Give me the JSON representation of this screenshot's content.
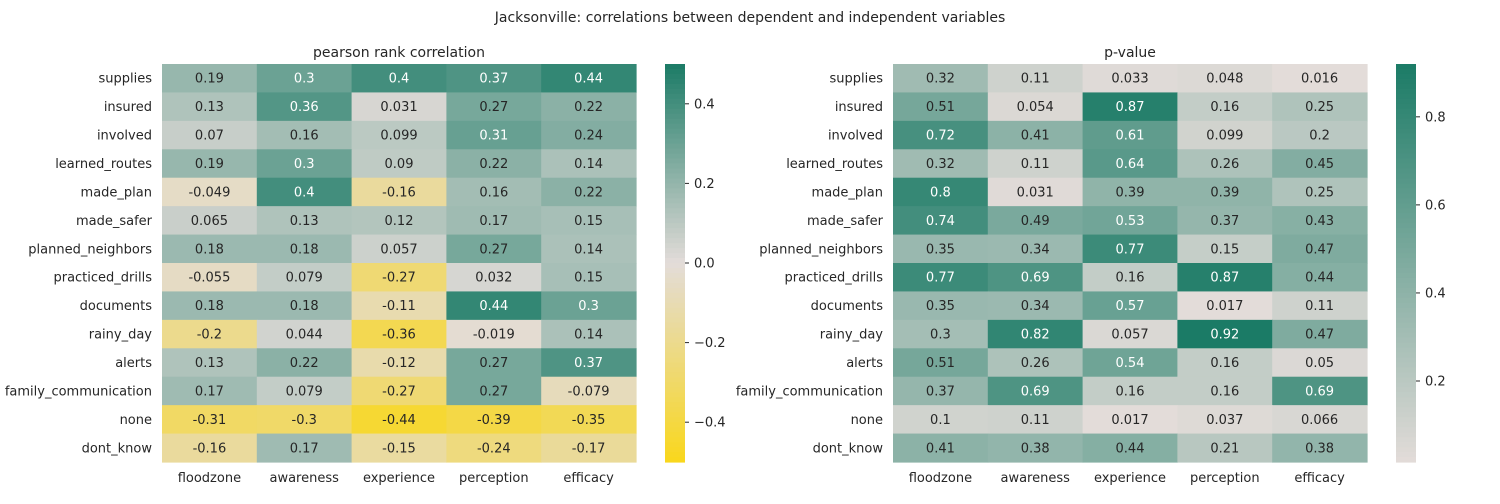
{
  "title": "Jacksonville: correlations between dependent and independent variables",
  "chart_data": [
    {
      "type": "heatmap",
      "title": "pearson rank correlation",
      "rows": [
        "supplies",
        "insured",
        "involved",
        "learned_routes",
        "made_plan",
        "made_safer",
        "planned_neighbors",
        "practiced_drills",
        "documents",
        "rainy_day",
        "alerts",
        "family_communication",
        "none",
        "dont_know"
      ],
      "columns": [
        "floodzone",
        "awareness",
        "experience",
        "perception",
        "efficacy"
      ],
      "values": [
        [
          0.19,
          0.3,
          0.4,
          0.37,
          0.44
        ],
        [
          0.13,
          0.36,
          0.031,
          0.27,
          0.22
        ],
        [
          0.07,
          0.16,
          0.099,
          0.31,
          0.24
        ],
        [
          0.19,
          0.3,
          0.09,
          0.22,
          0.14
        ],
        [
          -0.049,
          0.4,
          -0.16,
          0.16,
          0.22
        ],
        [
          0.065,
          0.13,
          0.12,
          0.17,
          0.15
        ],
        [
          0.18,
          0.18,
          0.057,
          0.27,
          0.14
        ],
        [
          -0.055,
          0.079,
          -0.27,
          0.032,
          0.15
        ],
        [
          0.18,
          0.18,
          -0.11,
          0.44,
          0.3
        ],
        [
          -0.2,
          0.044,
          -0.36,
          -0.019,
          0.14
        ],
        [
          0.13,
          0.22,
          -0.12,
          0.27,
          0.37
        ],
        [
          0.17,
          0.079,
          -0.27,
          0.27,
          -0.079
        ],
        [
          -0.31,
          -0.3,
          -0.44,
          -0.39,
          -0.35
        ],
        [
          -0.16,
          0.17,
          -0.15,
          -0.24,
          -0.17
        ]
      ],
      "labels": [
        [
          "0.19",
          "0.3",
          "0.4",
          "0.37",
          "0.44"
        ],
        [
          "0.13",
          "0.36",
          "0.031",
          "0.27",
          "0.22"
        ],
        [
          "0.07",
          "0.16",
          "0.099",
          "0.31",
          "0.24"
        ],
        [
          "0.19",
          "0.3",
          "0.09",
          "0.22",
          "0.14"
        ],
        [
          "-0.049",
          "0.4",
          "-0.16",
          "0.16",
          "0.22"
        ],
        [
          "0.065",
          "0.13",
          "0.12",
          "0.17",
          "0.15"
        ],
        [
          "0.18",
          "0.18",
          "0.057",
          "0.27",
          "0.14"
        ],
        [
          "-0.055",
          "0.079",
          "-0.27",
          "0.032",
          "0.15"
        ],
        [
          "0.18",
          "0.18",
          "-0.11",
          "0.44",
          "0.3"
        ],
        [
          "-0.2",
          "0.044",
          "-0.36",
          "-0.019",
          "0.14"
        ],
        [
          "0.13",
          "0.22",
          "-0.12",
          "0.27",
          "0.37"
        ],
        [
          "0.17",
          "0.079",
          "-0.27",
          "0.27",
          "-0.079"
        ],
        [
          "-0.31",
          "-0.3",
          "-0.44",
          "-0.39",
          "-0.35"
        ],
        [
          "-0.16",
          "0.17",
          "-0.15",
          "-0.24",
          "-0.17"
        ]
      ],
      "vmin": -0.5,
      "vmax": 0.5,
      "colorbar_ticks": [
        0.4,
        0.2,
        0.0,
        -0.2,
        -0.4
      ],
      "colorbar_tick_labels": [
        "0.4",
        "0.2",
        "0.0",
        "−0.2",
        "−0.4"
      ],
      "colormap": {
        "low": "#f9d71c",
        "mid": "#e3dcd9",
        "high": "#1b7b66"
      }
    },
    {
      "type": "heatmap",
      "title": "p-value",
      "rows": [
        "supplies",
        "insured",
        "involved",
        "learned_routes",
        "made_plan",
        "made_safer",
        "planned_neighbors",
        "practiced_drills",
        "documents",
        "rainy_day",
        "alerts",
        "family_communication",
        "none",
        "dont_know"
      ],
      "columns": [
        "floodzone",
        "awareness",
        "experience",
        "perception",
        "efficacy"
      ],
      "values": [
        [
          0.32,
          0.11,
          0.033,
          0.048,
          0.016
        ],
        [
          0.51,
          0.054,
          0.87,
          0.16,
          0.25
        ],
        [
          0.72,
          0.41,
          0.61,
          0.099,
          0.2
        ],
        [
          0.32,
          0.11,
          0.64,
          0.26,
          0.45
        ],
        [
          0.8,
          0.031,
          0.39,
          0.39,
          0.25
        ],
        [
          0.74,
          0.49,
          0.53,
          0.37,
          0.43
        ],
        [
          0.35,
          0.34,
          0.77,
          0.15,
          0.47
        ],
        [
          0.77,
          0.69,
          0.16,
          0.87,
          0.44
        ],
        [
          0.35,
          0.34,
          0.57,
          0.017,
          0.11
        ],
        [
          0.3,
          0.82,
          0.057,
          0.92,
          0.47
        ],
        [
          0.51,
          0.26,
          0.54,
          0.16,
          0.05
        ],
        [
          0.37,
          0.69,
          0.16,
          0.16,
          0.69
        ],
        [
          0.1,
          0.11,
          0.017,
          0.037,
          0.066
        ],
        [
          0.41,
          0.38,
          0.44,
          0.21,
          0.38
        ]
      ],
      "labels": [
        [
          "0.32",
          "0.11",
          "0.033",
          "0.048",
          "0.016"
        ],
        [
          "0.51",
          "0.054",
          "0.87",
          "0.16",
          "0.25"
        ],
        [
          "0.72",
          "0.41",
          "0.61",
          "0.099",
          "0.2"
        ],
        [
          "0.32",
          "0.11",
          "0.64",
          "0.26",
          "0.45"
        ],
        [
          "0.8",
          "0.031",
          "0.39",
          "0.39",
          "0.25"
        ],
        [
          "0.74",
          "0.49",
          "0.53",
          "0.37",
          "0.43"
        ],
        [
          "0.35",
          "0.34",
          "0.77",
          "0.15",
          "0.47"
        ],
        [
          "0.77",
          "0.69",
          "0.16",
          "0.87",
          "0.44"
        ],
        [
          "0.35",
          "0.34",
          "0.57",
          "0.017",
          "0.11"
        ],
        [
          "0.3",
          "0.82",
          "0.057",
          "0.92",
          "0.47"
        ],
        [
          "0.51",
          "0.26",
          "0.54",
          "0.16",
          "0.05"
        ],
        [
          "0.37",
          "0.69",
          "0.16",
          "0.16",
          "0.69"
        ],
        [
          "0.1",
          "0.11",
          "0.017",
          "0.037",
          "0.066"
        ],
        [
          "0.41",
          "0.38",
          "0.44",
          "0.21",
          "0.38"
        ]
      ],
      "vmin": 0.016,
      "vmax": 0.92,
      "colorbar_ticks": [
        0.8,
        0.6,
        0.4,
        0.2
      ],
      "colorbar_tick_labels": [
        "0.8",
        "0.6",
        "0.4",
        "0.2"
      ],
      "colormap": {
        "low": "#e3dcd9",
        "high": "#1b7b66"
      }
    }
  ]
}
